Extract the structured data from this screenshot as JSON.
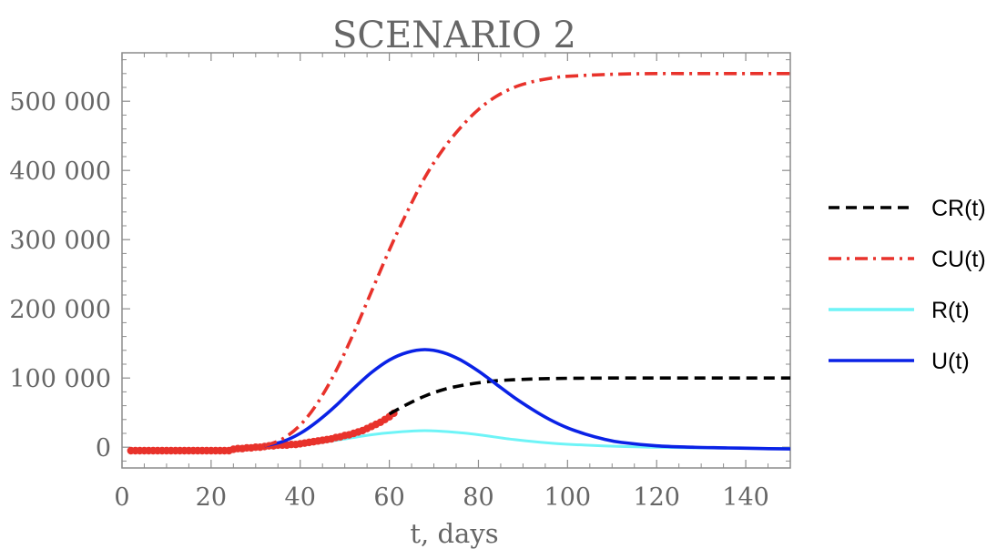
{
  "chart_data": {
    "type": "line",
    "title": "SCENARIO 2",
    "xlabel": "t, days",
    "ylabel": "",
    "xlim": [
      0,
      150
    ],
    "ylim": [
      -30000,
      570000
    ],
    "x_ticks": [
      0,
      20,
      40,
      60,
      80,
      100,
      120,
      140
    ],
    "x_tick_labels": [
      "0",
      "20",
      "40",
      "60",
      "80",
      "100",
      "120",
      "140"
    ],
    "y_ticks": [
      0,
      100000,
      200000,
      300000,
      400000,
      500000
    ],
    "y_tick_labels": [
      "0",
      "100 000",
      "200 000",
      "300 000",
      "400 000",
      "500 000"
    ],
    "grid": false,
    "legend_position": "right",
    "series": [
      {
        "name": "CR(t)",
        "style": "dashed",
        "color": "#000000",
        "x": [
          60,
          64,
          68,
          72,
          76,
          80,
          84,
          88,
          92,
          96,
          100,
          110,
          120,
          130,
          140,
          150
        ],
        "y": [
          48000,
          62000,
          74000,
          83000,
          89000,
          93000,
          96000,
          97500,
          98500,
          99200,
          99600,
          100000,
          100000,
          100000,
          100000,
          100000
        ]
      },
      {
        "name": "CU(t)",
        "style": "dashdot",
        "color": "#e8322b",
        "x": [
          32,
          36,
          40,
          44,
          48,
          52,
          56,
          60,
          64,
          68,
          72,
          76,
          80,
          84,
          88,
          92,
          96,
          100,
          110,
          120,
          130,
          140,
          150
        ],
        "y": [
          2000,
          12000,
          32000,
          65000,
          110000,
          165000,
          225000,
          285000,
          340000,
          390000,
          430000,
          462000,
          488000,
          507000,
          520000,
          528000,
          533000,
          536000,
          539000,
          540000,
          540000,
          540000,
          540000
        ]
      },
      {
        "name": "R(t)",
        "style": "solid",
        "color": "#6ef4f7",
        "x": [
          32,
          40,
          48,
          56,
          62,
          68,
          74,
          80,
          88,
          96,
          104,
          112,
          120,
          130,
          140,
          150
        ],
        "y": [
          0,
          3000,
          10000,
          18000,
          22000,
          24000,
          22000,
          18000,
          11000,
          6000,
          3000,
          1000,
          0,
          -1000,
          -1500,
          -2000
        ]
      },
      {
        "name": "U(t)",
        "style": "solid",
        "color": "#0a22e6",
        "x": [
          32,
          36,
          40,
          44,
          48,
          52,
          56,
          60,
          64,
          68,
          72,
          76,
          80,
          84,
          88,
          92,
          96,
          100,
          104,
          108,
          112,
          120,
          128,
          136,
          144,
          150
        ],
        "y": [
          2000,
          8000,
          20000,
          38000,
          60000,
          85000,
          108000,
          126000,
          137000,
          141000,
          137000,
          126000,
          110000,
          91000,
          72000,
          55000,
          40000,
          28000,
          19000,
          12000,
          7000,
          2000,
          0,
          -1000,
          -2000,
          -2500
        ]
      },
      {
        "name": "data",
        "style": "markers",
        "color": "#e8322b",
        "x": [
          2,
          3,
          4,
          5,
          6,
          7,
          8,
          9,
          10,
          11,
          12,
          13,
          14,
          15,
          16,
          17,
          18,
          19,
          20,
          21,
          22,
          23,
          24,
          25,
          26,
          27,
          28,
          29,
          30,
          31,
          32,
          33,
          34,
          35,
          36,
          37,
          38,
          39,
          40,
          41,
          42,
          43,
          44,
          45,
          46,
          47,
          48,
          49,
          50,
          51,
          52,
          53,
          54,
          55,
          56,
          57,
          58,
          59,
          60,
          61
        ],
        "y": [
          -5000,
          -5000,
          -5000,
          -5000,
          -5000,
          -5000,
          -5000,
          -5000,
          -5000,
          -5000,
          -5000,
          -5000,
          -5000,
          -5000,
          -5000,
          -5000,
          -5000,
          -5000,
          -5000,
          -5000,
          -5000,
          -5000,
          -5000,
          -3000,
          -2000,
          -2000,
          -1000,
          -1000,
          0,
          0,
          1000,
          2000,
          2000,
          3000,
          3000,
          3000,
          4000,
          4000,
          5000,
          6000,
          7000,
          8000,
          9000,
          10000,
          11000,
          12000,
          14000,
          15000,
          17000,
          18000,
          20000,
          22000,
          24000,
          27000,
          30000,
          33000,
          36000,
          40000,
          44000,
          49000
        ]
      }
    ]
  }
}
